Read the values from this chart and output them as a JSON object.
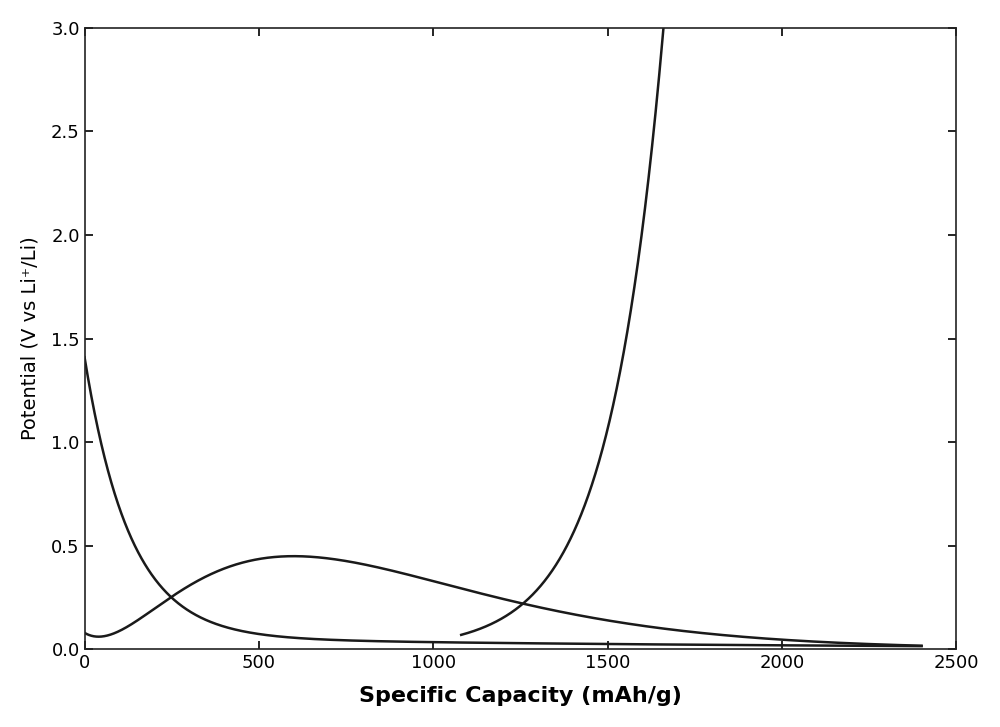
{
  "title": "",
  "xlabel": "Specific Capacity (mAh/g)",
  "ylabel": "Potential (V vs Li⁺/Li)",
  "xlim": [
    0,
    2500
  ],
  "ylim": [
    0.0,
    3.0
  ],
  "xticks": [
    0,
    500,
    1000,
    1500,
    2000,
    2500
  ],
  "yticks": [
    0.0,
    0.5,
    1.0,
    1.5,
    2.0,
    2.5,
    3.0
  ],
  "line_color": "#1a1a1a",
  "line_width": 1.8,
  "background_color": "#ffffff",
  "xlabel_fontsize": 16,
  "ylabel_fontsize": 14,
  "tick_fontsize": 13
}
